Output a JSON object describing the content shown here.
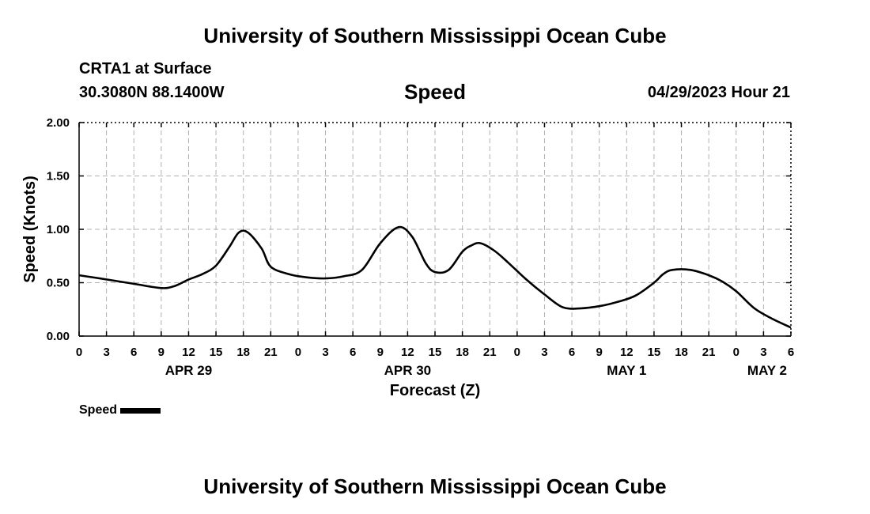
{
  "header": {
    "title": "University of Southern Mississippi Ocean Cube",
    "station": "CRTA1 at Surface",
    "coords": "30.3080N  88.1400W",
    "variable": "Speed",
    "datetime": "04/29/2023 Hour 21"
  },
  "footer": {
    "title": "University of Southern Mississippi Ocean Cube"
  },
  "legend": {
    "label": "Speed"
  },
  "chart_data": {
    "type": "line",
    "title": "Speed",
    "xlabel": "Forecast (Z)",
    "ylabel": "Speed (Knots)",
    "xlim": [
      0,
      78
    ],
    "ylim": [
      0,
      2.0
    ],
    "y_ticks": [
      "0.00",
      "0.50",
      "1.00",
      "1.50",
      "2.00"
    ],
    "x_tick_labels": [
      "0",
      "3",
      "6",
      "9",
      "12",
      "15",
      "18",
      "21",
      "0",
      "3",
      "6",
      "9",
      "12",
      "15",
      "18",
      "21",
      "0",
      "3",
      "6",
      "9",
      "12",
      "15",
      "18",
      "21",
      "0",
      "3",
      "6"
    ],
    "day_labels": [
      {
        "label": "APR 29",
        "hour": 12
      },
      {
        "label": "APR 30",
        "hour": 36
      },
      {
        "label": "MAY 1",
        "hour": 60
      },
      {
        "label": "MAY 2",
        "hour": 78
      }
    ],
    "grid": true,
    "series": [
      {
        "name": "Speed",
        "x": [
          0,
          3,
          6,
          9,
          10.5,
          12,
          13.5,
          15,
          16.5,
          17.5,
          18.5,
          20,
          21,
          23,
          25,
          27,
          29,
          31,
          33,
          35,
          36.5,
          38,
          39,
          40.5,
          42,
          43,
          44,
          45.5,
          47,
          49,
          51,
          53,
          55,
          57,
          59,
          61,
          63,
          64,
          65,
          67,
          69,
          70.5,
          72,
          74,
          76,
          78
        ],
        "y": [
          0.57,
          0.53,
          0.49,
          0.45,
          0.47,
          0.53,
          0.58,
          0.66,
          0.84,
          0.97,
          0.97,
          0.82,
          0.65,
          0.58,
          0.55,
          0.54,
          0.56,
          0.62,
          0.87,
          1.02,
          0.93,
          0.68,
          0.6,
          0.62,
          0.79,
          0.85,
          0.87,
          0.8,
          0.69,
          0.53,
          0.39,
          0.27,
          0.26,
          0.28,
          0.32,
          0.38,
          0.5,
          0.58,
          0.62,
          0.62,
          0.57,
          0.51,
          0.42,
          0.26,
          0.16,
          0.08
        ]
      }
    ]
  }
}
